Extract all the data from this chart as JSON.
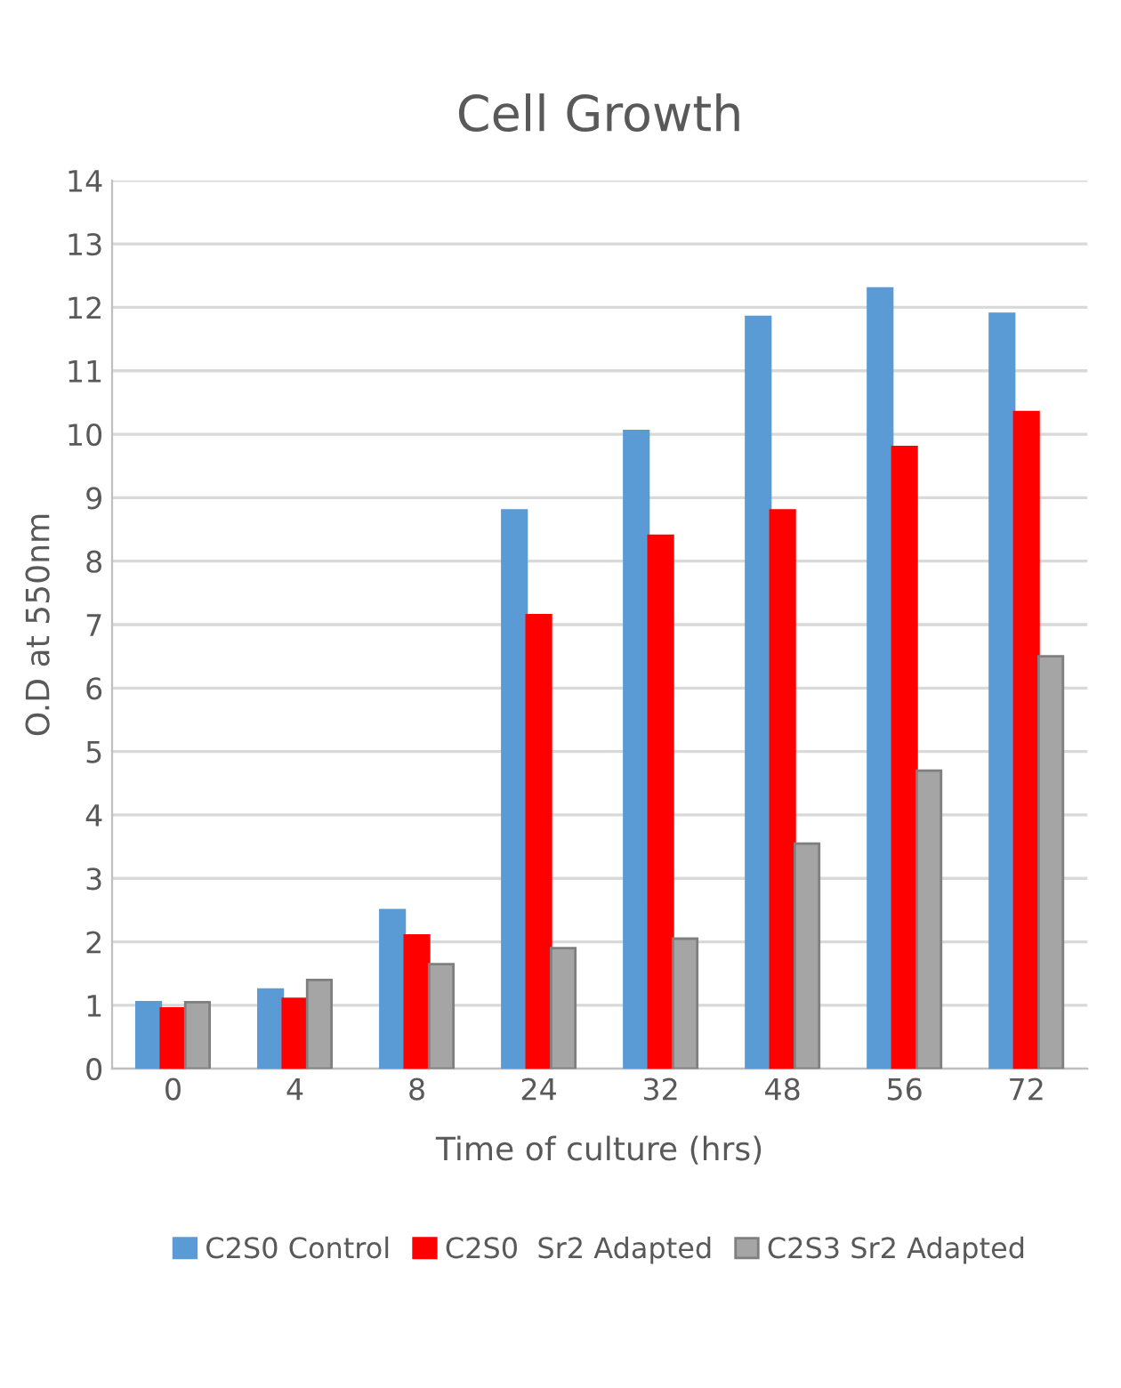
{
  "chart_data": {
    "type": "bar",
    "title": "Cell Growth",
    "xlabel": "Time of culture (hrs)",
    "ylabel": "O.D at 550nm",
    "categories": [
      "0",
      "4",
      "8",
      "24",
      "32",
      "48",
      "56",
      "72"
    ],
    "series": [
      {
        "name": "C2S0 Control",
        "color": "#5b9bd5",
        "values": [
          1.05,
          1.25,
          2.5,
          8.8,
          10.05,
          11.85,
          12.3,
          11.9
        ]
      },
      {
        "name": "C2S0  Sr2 Adapted",
        "color": "#ff0000",
        "values": [
          0.95,
          1.1,
          2.1,
          7.15,
          8.4,
          8.8,
          9.8,
          10.35
        ]
      },
      {
        "name": "C2S3 Sr2 Adapted",
        "color": "#a5a5a5",
        "values": [
          1.05,
          1.4,
          1.65,
          1.9,
          2.05,
          3.55,
          4.7,
          6.5
        ]
      }
    ],
    "ylim": [
      0,
      14
    ],
    "yticks": [
      0,
      1,
      2,
      3,
      4,
      5,
      6,
      7,
      8,
      9,
      10,
      11,
      12,
      13,
      14
    ],
    "grid": "y",
    "legend": "bottom"
  }
}
